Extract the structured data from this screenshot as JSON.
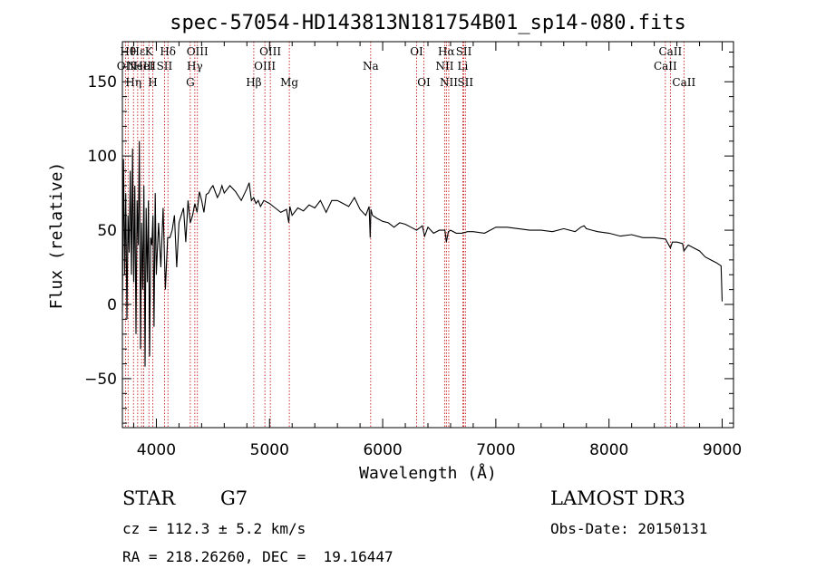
{
  "chart_data": {
    "type": "line",
    "title": "spec-57054-HD143813N181754B01_sp14-080.fits",
    "xlabel": "Wavelength (Å)",
    "ylabel": "Flux (relative)",
    "xlim": [
      3700,
      9100
    ],
    "ylim": [
      -83,
      177
    ],
    "xticks": [
      4000,
      5000,
      6000,
      7000,
      8000,
      9000
    ],
    "yticks": [
      -50,
      0,
      50,
      100,
      150
    ],
    "ytick_labels": [
      "−50",
      "0",
      "50",
      "100",
      "150"
    ],
    "series": [
      {
        "name": "flux",
        "x": [
          3700,
          3710,
          3720,
          3730,
          3740,
          3750,
          3760,
          3770,
          3780,
          3790,
          3800,
          3810,
          3820,
          3830,
          3840,
          3850,
          3860,
          3870,
          3880,
          3890,
          3900,
          3910,
          3920,
          3930,
          3940,
          3950,
          3960,
          3970,
          3980,
          3990,
          4000,
          4020,
          4040,
          4060,
          4080,
          4100,
          4120,
          4140,
          4160,
          4180,
          4200,
          4220,
          4240,
          4260,
          4280,
          4300,
          4320,
          4340,
          4360,
          4380,
          4400,
          4420,
          4440,
          4460,
          4480,
          4500,
          4520,
          4540,
          4560,
          4580,
          4600,
          4650,
          4700,
          4750,
          4800,
          4820,
          4840,
          4860,
          4880,
          4900,
          4920,
          4950,
          5000,
          5050,
          5100,
          5150,
          5170,
          5180,
          5200,
          5250,
          5300,
          5350,
          5400,
          5450,
          5500,
          5550,
          5600,
          5650,
          5700,
          5750,
          5800,
          5850,
          5880,
          5890,
          5896,
          5910,
          5950,
          6000,
          6050,
          6100,
          6150,
          6200,
          6250,
          6300,
          6350,
          6370,
          6400,
          6450,
          6500,
          6550,
          6563,
          6580,
          6600,
          6650,
          6700,
          6750,
          6800,
          6900,
          7000,
          7100,
          7200,
          7300,
          7400,
          7500,
          7600,
          7700,
          7750,
          7780,
          7800,
          7850,
          7900,
          8000,
          8100,
          8200,
          8300,
          8400,
          8500,
          8542,
          8560,
          8600,
          8650,
          8662,
          8700,
          8750,
          8800,
          8850,
          8900,
          8950,
          8990,
          9000
        ],
        "values": [
          -5,
          98,
          20,
          75,
          -10,
          60,
          35,
          90,
          20,
          105,
          15,
          80,
          -20,
          70,
          40,
          110,
          -30,
          55,
          10,
          80,
          -42,
          65,
          15,
          70,
          -35,
          45,
          40,
          60,
          -15,
          75,
          20,
          55,
          25,
          65,
          10,
          45,
          45,
          50,
          60,
          25,
          55,
          60,
          65,
          42,
          70,
          55,
          60,
          68,
          62,
          76,
          70,
          62,
          74,
          75,
          78,
          80,
          76,
          72,
          75,
          80,
          75,
          80,
          76,
          70,
          78,
          82,
          70,
          72,
          68,
          70,
          66,
          70,
          68,
          65,
          62,
          64,
          55,
          66,
          60,
          65,
          63,
          67,
          65,
          70,
          62,
          70,
          70,
          68,
          66,
          72,
          64,
          60,
          66,
          45,
          64,
          60,
          58,
          56,
          55,
          52,
          55,
          54,
          52,
          50,
          53,
          46,
          52,
          48,
          50,
          50,
          42,
          49,
          50,
          48,
          48,
          49,
          49,
          48,
          52,
          52,
          51,
          50,
          50,
          49,
          51,
          49,
          52,
          53,
          51,
          50,
          49,
          48,
          46,
          47,
          45,
          45,
          44,
          38,
          42,
          42,
          41,
          36,
          40,
          38,
          36,
          32,
          30,
          28,
          26,
          2
        ]
      }
    ],
    "line_markers": [
      {
        "wavelength": 3727,
        "label": "OII",
        "row": 2
      },
      {
        "wavelength": 3750,
        "label": "Hθ",
        "row": 1
      },
      {
        "wavelength": 3798,
        "label": "Hη",
        "row": 3
      },
      {
        "wavelength": 3835,
        "label": "Hε",
        "row": 1
      },
      {
        "wavelength": 3869,
        "label": "NeIII",
        "row": 2
      },
      {
        "wavelength": 3889,
        "label": "HeI",
        "row": 2
      },
      {
        "wavelength": 3934,
        "label": "K",
        "row": 1
      },
      {
        "wavelength": 3968,
        "label": "H",
        "row": 3
      },
      {
        "wavelength": 4072,
        "label": "SII",
        "row": 2
      },
      {
        "wavelength": 4102,
        "label": "Hδ",
        "row": 1
      },
      {
        "wavelength": 4300,
        "label": "G",
        "row": 3
      },
      {
        "wavelength": 4340,
        "label": "Hγ",
        "row": 2
      },
      {
        "wavelength": 4363,
        "label": "OIII",
        "row": 1
      },
      {
        "wavelength": 4861,
        "label": "Hβ",
        "row": 3
      },
      {
        "wavelength": 4959,
        "label": "OIII",
        "row": 2
      },
      {
        "wavelength": 5007,
        "label": "OIII",
        "row": 1
      },
      {
        "wavelength": 5175,
        "label": "Mg",
        "row": 3
      },
      {
        "wavelength": 5894,
        "label": "Na",
        "row": 2
      },
      {
        "wavelength": 6300,
        "label": "OI",
        "row": 1
      },
      {
        "wavelength": 6364,
        "label": "OI",
        "row": 3
      },
      {
        "wavelength": 6548,
        "label": "NII",
        "row": 2
      },
      {
        "wavelength": 6563,
        "label": "Hα",
        "row": 1
      },
      {
        "wavelength": 6584,
        "label": "NII",
        "row": 3
      },
      {
        "wavelength": 6708,
        "label": "Li",
        "row": 2
      },
      {
        "wavelength": 6717,
        "label": "SII",
        "row": 1
      },
      {
        "wavelength": 6731,
        "label": "SII",
        "row": 3
      },
      {
        "wavelength": 8498,
        "label": "CaII",
        "row": 2
      },
      {
        "wavelength": 8542,
        "label": "CaII",
        "row": 1
      },
      {
        "wavelength": 8662,
        "label": "CaII",
        "row": 3
      }
    ],
    "colors": {
      "spectrum": "#000000",
      "marker": "#c00000",
      "axes": "#000000"
    }
  },
  "info": {
    "class": "STAR",
    "subclass": "G7",
    "survey": "LAMOST DR3",
    "cz": "cz = 112.3 ± 5.2 km/s",
    "obs_date": "Obs-Date: 20150131",
    "coords": "RA = 218.26260, DEC =  19.16447"
  }
}
